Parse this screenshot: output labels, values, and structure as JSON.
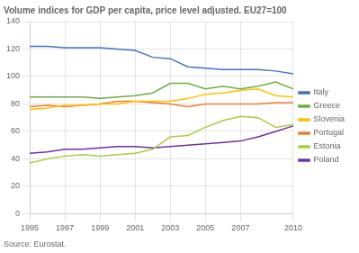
{
  "chart_data": {
    "type": "line",
    "title": "Volume indices for GDP per capita, price level adjusted. EU27=100",
    "annotations": [
      "Source: Eurostat."
    ],
    "x": [
      1995,
      1996,
      1997,
      1998,
      1999,
      2000,
      2001,
      2002,
      2003,
      2004,
      2005,
      2006,
      2007,
      2008,
      2009,
      2010
    ],
    "series": [
      {
        "name": "Italy",
        "color": "#4472C4",
        "values": [
          122,
          122,
          121,
          121,
          121,
          120,
          119,
          114,
          113,
          107,
          106,
          105,
          105,
          105,
          104,
          102
        ]
      },
      {
        "name": "Greece",
        "color": "#70AD47",
        "values": [
          85,
          85,
          85,
          85,
          84,
          85,
          86,
          88,
          95,
          95,
          91,
          93,
          91,
          93,
          96,
          91
        ]
      },
      {
        "name": "Slovenia",
        "color": "#FFC000",
        "values": [
          76,
          77,
          79,
          79,
          80,
          80,
          82,
          82,
          82,
          84,
          87,
          88,
          90,
          91,
          86,
          85
        ]
      },
      {
        "name": "Portugal",
        "color": "#ED7D31",
        "values": [
          78,
          79,
          78,
          79,
          80,
          82,
          82,
          81,
          80,
          78,
          80,
          80,
          80,
          80,
          81,
          81
        ]
      },
      {
        "name": "Estonia",
        "color": "#AACC44",
        "values": [
          37,
          40,
          42,
          43,
          42,
          43,
          44,
          47,
          56,
          57,
          63,
          68,
          71,
          70,
          63,
          65
        ]
      },
      {
        "name": "Poland",
        "color": "#7030A0",
        "values": [
          44,
          45,
          47,
          47,
          48,
          49,
          49,
          48,
          49,
          50,
          51,
          52,
          53,
          56,
          60,
          64
        ]
      }
    ],
    "xlim": [
      1995,
      2010
    ],
    "xticks": [
      1995,
      1997,
      1999,
      2001,
      2003,
      2005,
      2007,
      2010
    ],
    "ylim": [
      0,
      140
    ],
    "yticks": [
      0,
      20,
      40,
      60,
      80,
      100,
      120,
      140
    ],
    "grid": true,
    "legend": "right"
  }
}
